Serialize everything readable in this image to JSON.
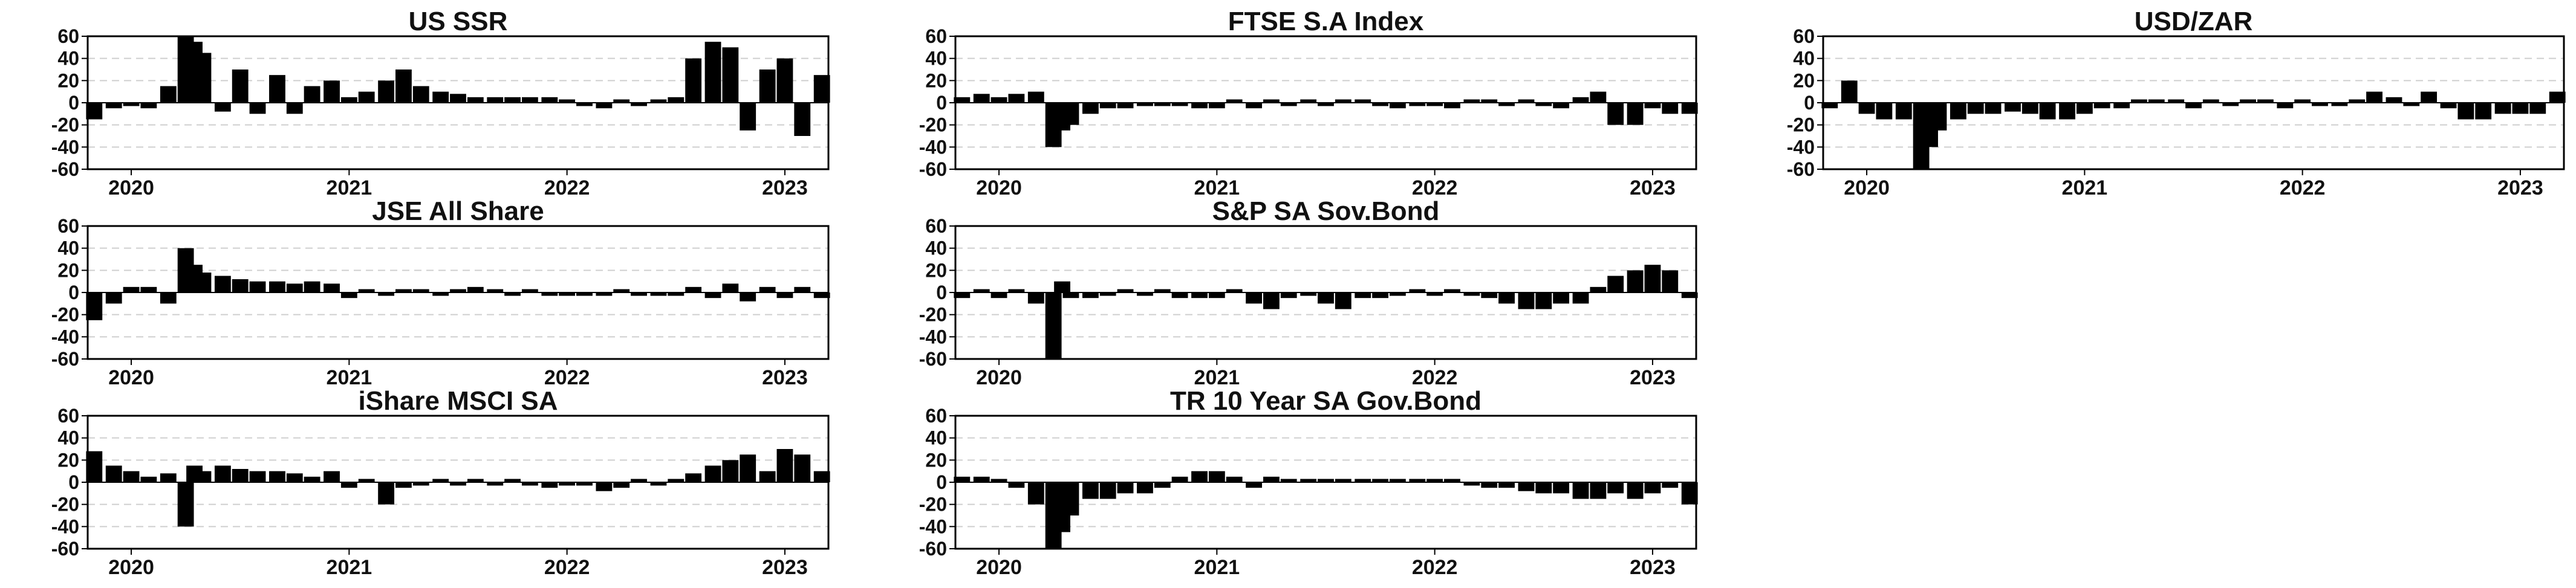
{
  "chart_data": [
    {
      "type": "bar",
      "title": "US SSR",
      "ylim": [
        -60,
        60
      ],
      "yticks": [
        60,
        40,
        20,
        0,
        -20,
        -40,
        -60
      ],
      "xlim": [
        2019.8,
        2023.2
      ],
      "xticks": [
        2020,
        2021,
        2022,
        2023
      ],
      "grid": true,
      "legend": "none",
      "x": [
        2019.83,
        2019.92,
        2020.0,
        2020.08,
        2020.17,
        2020.25,
        2020.29,
        2020.33,
        2020.42,
        2020.5,
        2020.58,
        2020.67,
        2020.75,
        2020.83,
        2020.92,
        2021.0,
        2021.08,
        2021.17,
        2021.25,
        2021.33,
        2021.42,
        2021.5,
        2021.58,
        2021.67,
        2021.75,
        2021.83,
        2021.92,
        2022.0,
        2022.08,
        2022.17,
        2022.25,
        2022.33,
        2022.42,
        2022.5,
        2022.58,
        2022.67,
        2022.75,
        2022.83,
        2022.92,
        2023.0,
        2023.08,
        2023.17
      ],
      "values": [
        -15,
        -5,
        -3,
        -5,
        15,
        60,
        55,
        45,
        -8,
        30,
        -10,
        25,
        -10,
        15,
        20,
        5,
        10,
        20,
        30,
        15,
        10,
        8,
        5,
        5,
        5,
        5,
        5,
        3,
        -3,
        -5,
        3,
        -3,
        3,
        5,
        40,
        55,
        50,
        -25,
        30,
        40,
        -30,
        25
      ]
    },
    {
      "type": "bar",
      "title": "FTSE S.A Index",
      "ylim": [
        -60,
        60
      ],
      "yticks": [
        60,
        40,
        20,
        0,
        -20,
        -40,
        -60
      ],
      "xlim": [
        2019.8,
        2023.2
      ],
      "xticks": [
        2020,
        2021,
        2022,
        2023
      ],
      "grid": true,
      "legend": "none",
      "x": [
        2019.83,
        2019.92,
        2020.0,
        2020.08,
        2020.17,
        2020.25,
        2020.29,
        2020.33,
        2020.42,
        2020.5,
        2020.58,
        2020.67,
        2020.75,
        2020.83,
        2020.92,
        2021.0,
        2021.08,
        2021.17,
        2021.25,
        2021.33,
        2021.42,
        2021.5,
        2021.58,
        2021.67,
        2021.75,
        2021.83,
        2021.92,
        2022.0,
        2022.08,
        2022.17,
        2022.25,
        2022.33,
        2022.42,
        2022.5,
        2022.58,
        2022.67,
        2022.75,
        2022.83,
        2022.92,
        2023.0,
        2023.08,
        2023.17
      ],
      "values": [
        5,
        8,
        5,
        8,
        10,
        -40,
        -25,
        -20,
        -10,
        -5,
        -5,
        -3,
        -3,
        -3,
        -5,
        -5,
        3,
        -5,
        3,
        -3,
        3,
        -3,
        3,
        3,
        -3,
        -5,
        -3,
        -3,
        -5,
        3,
        3,
        -3,
        3,
        -3,
        -5,
        5,
        10,
        -20,
        -20,
        -5,
        -10,
        -10
      ]
    },
    {
      "type": "bar",
      "title": "USD/ZAR",
      "ylim": [
        -60,
        60
      ],
      "yticks": [
        60,
        40,
        20,
        0,
        -20,
        -40,
        -60
      ],
      "xlim": [
        2019.8,
        2023.2
      ],
      "xticks": [
        2020,
        2021,
        2022,
        2023
      ],
      "grid": true,
      "legend": "none",
      "x": [
        2019.83,
        2019.92,
        2020.0,
        2020.08,
        2020.17,
        2020.25,
        2020.29,
        2020.33,
        2020.42,
        2020.5,
        2020.58,
        2020.67,
        2020.75,
        2020.83,
        2020.92,
        2021.0,
        2021.08,
        2021.17,
        2021.25,
        2021.33,
        2021.42,
        2021.5,
        2021.58,
        2021.67,
        2021.75,
        2021.83,
        2021.92,
        2022.0,
        2022.08,
        2022.17,
        2022.25,
        2022.33,
        2022.42,
        2022.5,
        2022.58,
        2022.67,
        2022.75,
        2022.83,
        2022.92,
        2023.0,
        2023.08,
        2023.17
      ],
      "values": [
        -5,
        20,
        -10,
        -15,
        -15,
        -60,
        -40,
        -25,
        -15,
        -10,
        -10,
        -8,
        -10,
        -15,
        -15,
        -10,
        -5,
        -5,
        3,
        3,
        3,
        -5,
        3,
        -3,
        3,
        3,
        -5,
        3,
        -3,
        -3,
        3,
        10,
        5,
        -3,
        10,
        -5,
        -15,
        -15,
        -10,
        -10,
        -10,
        10
      ]
    },
    {
      "type": "bar",
      "title": "JSE All Share",
      "ylim": [
        -60,
        60
      ],
      "yticks": [
        60,
        40,
        20,
        0,
        -20,
        -40,
        -60
      ],
      "xlim": [
        2019.8,
        2023.2
      ],
      "xticks": [
        2020,
        2021,
        2022,
        2023
      ],
      "grid": true,
      "legend": "none",
      "x": [
        2019.83,
        2019.92,
        2020.0,
        2020.08,
        2020.17,
        2020.25,
        2020.29,
        2020.33,
        2020.42,
        2020.5,
        2020.58,
        2020.67,
        2020.75,
        2020.83,
        2020.92,
        2021.0,
        2021.08,
        2021.17,
        2021.25,
        2021.33,
        2021.42,
        2021.5,
        2021.58,
        2021.67,
        2021.75,
        2021.83,
        2021.92,
        2022.0,
        2022.08,
        2022.17,
        2022.25,
        2022.33,
        2022.42,
        2022.5,
        2022.58,
        2022.67,
        2022.75,
        2022.83,
        2022.92,
        2023.0,
        2023.08,
        2023.17
      ],
      "values": [
        -25,
        -10,
        5,
        5,
        -10,
        40,
        25,
        18,
        15,
        12,
        10,
        10,
        8,
        10,
        8,
        -5,
        3,
        -3,
        3,
        3,
        -3,
        3,
        5,
        3,
        -3,
        3,
        -3,
        -3,
        -3,
        -3,
        3,
        -3,
        -3,
        -3,
        5,
        -5,
        8,
        -8,
        5,
        -5,
        5,
        -5
      ]
    },
    {
      "type": "bar",
      "title": "S&P SA Sov.Bond",
      "ylim": [
        -60,
        60
      ],
      "yticks": [
        60,
        40,
        20,
        0,
        -20,
        -40,
        -60
      ],
      "xlim": [
        2019.8,
        2023.2
      ],
      "xticks": [
        2020,
        2021,
        2022,
        2023
      ],
      "grid": true,
      "legend": "none",
      "x": [
        2019.83,
        2019.92,
        2020.0,
        2020.08,
        2020.17,
        2020.25,
        2020.29,
        2020.33,
        2020.42,
        2020.5,
        2020.58,
        2020.67,
        2020.75,
        2020.83,
        2020.92,
        2021.0,
        2021.08,
        2021.17,
        2021.25,
        2021.33,
        2021.42,
        2021.5,
        2021.58,
        2021.67,
        2021.75,
        2021.83,
        2021.92,
        2022.0,
        2022.08,
        2022.17,
        2022.25,
        2022.33,
        2022.42,
        2022.5,
        2022.58,
        2022.67,
        2022.75,
        2022.83,
        2022.92,
        2023.0,
        2023.08,
        2023.17
      ],
      "values": [
        -5,
        3,
        -5,
        3,
        -10,
        -60,
        10,
        -5,
        -5,
        -3,
        3,
        -3,
        3,
        -5,
        -5,
        -5,
        3,
        -10,
        -15,
        -5,
        -3,
        -10,
        -15,
        -5,
        -5,
        -3,
        3,
        -3,
        3,
        -3,
        -5,
        -10,
        -15,
        -15,
        -10,
        -10,
        5,
        15,
        20,
        25,
        20,
        -5
      ]
    },
    {
      "type": "bar",
      "title": "iShare MSCI SA",
      "ylim": [
        -60,
        60
      ],
      "yticks": [
        60,
        40,
        20,
        0,
        -20,
        -40,
        -60
      ],
      "xlim": [
        2019.8,
        2023.2
      ],
      "xticks": [
        2020,
        2021,
        2022,
        2023
      ],
      "grid": true,
      "legend": "none",
      "x": [
        2019.83,
        2019.92,
        2020.0,
        2020.08,
        2020.17,
        2020.25,
        2020.29,
        2020.33,
        2020.42,
        2020.5,
        2020.58,
        2020.67,
        2020.75,
        2020.83,
        2020.92,
        2021.0,
        2021.08,
        2021.17,
        2021.25,
        2021.33,
        2021.42,
        2021.5,
        2021.58,
        2021.67,
        2021.75,
        2021.83,
        2021.92,
        2022.0,
        2022.08,
        2022.17,
        2022.25,
        2022.33,
        2022.42,
        2022.5,
        2022.58,
        2022.67,
        2022.75,
        2022.83,
        2022.92,
        2023.0,
        2023.08,
        2023.17
      ],
      "values": [
        28,
        15,
        10,
        5,
        8,
        -40,
        15,
        10,
        15,
        12,
        10,
        10,
        8,
        5,
        10,
        -5,
        3,
        -20,
        -5,
        -3,
        3,
        -3,
        3,
        -3,
        3,
        -3,
        -5,
        -3,
        -3,
        -8,
        -5,
        3,
        -3,
        3,
        8,
        15,
        20,
        25,
        10,
        30,
        25,
        10
      ]
    },
    {
      "type": "bar",
      "title": "TR 10 Year SA Gov.Bond",
      "ylim": [
        -60,
        60
      ],
      "yticks": [
        60,
        40,
        20,
        0,
        -20,
        -40,
        -60
      ],
      "xlim": [
        2019.8,
        2023.2
      ],
      "xticks": [
        2020,
        2021,
        2022,
        2023
      ],
      "grid": true,
      "legend": "none",
      "x": [
        2019.83,
        2019.92,
        2020.0,
        2020.08,
        2020.17,
        2020.25,
        2020.29,
        2020.33,
        2020.42,
        2020.5,
        2020.58,
        2020.67,
        2020.75,
        2020.83,
        2020.92,
        2021.0,
        2021.08,
        2021.17,
        2021.25,
        2021.33,
        2021.42,
        2021.5,
        2021.58,
        2021.67,
        2021.75,
        2021.83,
        2021.92,
        2022.0,
        2022.08,
        2022.17,
        2022.25,
        2022.33,
        2022.42,
        2022.5,
        2022.58,
        2022.67,
        2022.75,
        2022.83,
        2022.92,
        2023.0,
        2023.08,
        2023.17
      ],
      "values": [
        5,
        5,
        3,
        -5,
        -20,
        -60,
        -45,
        -30,
        -15,
        -15,
        -10,
        -10,
        -5,
        5,
        10,
        10,
        5,
        -5,
        5,
        3,
        3,
        3,
        3,
        3,
        3,
        3,
        3,
        3,
        3,
        -3,
        -5,
        -5,
        -8,
        -10,
        -10,
        -15,
        -15,
        -10,
        -15,
        -10,
        -5,
        -20
      ]
    }
  ]
}
